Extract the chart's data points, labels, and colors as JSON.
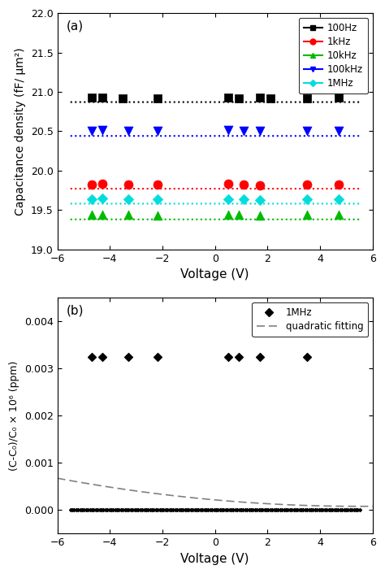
{
  "panel_a": {
    "xlabel": "Voltage (V)",
    "ylabel": "Capacitance density (fF/ μm²)",
    "label": "(a)",
    "xlim": [
      -6,
      6
    ],
    "ylim": [
      19.0,
      22.0
    ],
    "yticks": [
      19.0,
      19.5,
      20.0,
      20.5,
      21.0,
      21.5,
      22.0
    ],
    "xticks": [
      -6,
      -4,
      -2,
      0,
      2,
      4,
      6
    ],
    "series": [
      {
        "label": "100Hz",
        "color": "#000000",
        "marker": "s",
        "marker_size": 5,
        "y_line": 20.87,
        "scatter_x": [
          -4.7,
          -4.3,
          -3.5,
          -2.2,
          0.5,
          0.9,
          1.7,
          2.1,
          3.5,
          4.7
        ],
        "scatter_y": [
          20.93,
          20.93,
          20.92,
          20.92,
          20.93,
          20.92,
          20.93,
          20.92,
          20.92,
          20.93
        ]
      },
      {
        "label": "1kHz",
        "color": "#ff0000",
        "marker": "o",
        "marker_size": 5,
        "y_line": 19.77,
        "scatter_x": [
          -4.7,
          -4.3,
          -3.3,
          -2.2,
          0.5,
          1.1,
          1.7,
          3.5,
          4.7
        ],
        "scatter_y": [
          19.82,
          19.83,
          19.82,
          19.82,
          19.83,
          19.82,
          19.81,
          19.82,
          19.82
        ]
      },
      {
        "label": "10kHz",
        "color": "#00bb00",
        "marker": "^",
        "marker_size": 5,
        "y_line": 19.38,
        "scatter_x": [
          -4.7,
          -4.3,
          -3.3,
          -2.2,
          0.5,
          0.9,
          1.7,
          3.5,
          4.7
        ],
        "scatter_y": [
          19.44,
          19.44,
          19.44,
          19.43,
          19.44,
          19.44,
          19.43,
          19.44,
          19.44
        ]
      },
      {
        "label": "100kHz",
        "color": "#0000ff",
        "marker": "v",
        "marker_size": 5,
        "y_line": 20.44,
        "scatter_x": [
          -4.7,
          -4.3,
          -3.3,
          -2.2,
          0.5,
          1.1,
          1.7,
          3.5,
          4.7
        ],
        "scatter_y": [
          20.5,
          20.51,
          20.5,
          20.5,
          20.51,
          20.5,
          20.5,
          20.5,
          20.5
        ]
      },
      {
        "label": "1MHz",
        "color": "#00dddd",
        "marker": "D",
        "marker_size": 4,
        "y_line": 19.58,
        "scatter_x": [
          -4.7,
          -4.3,
          -3.3,
          -2.2,
          0.5,
          1.1,
          1.7,
          3.5,
          4.7
        ],
        "scatter_y": [
          19.64,
          19.65,
          19.64,
          19.64,
          19.64,
          19.64,
          19.63,
          19.64,
          19.64
        ]
      }
    ]
  },
  "panel_b": {
    "xlabel": "Voltage (V)",
    "ylabel": "(C-C₀)/C₀ × 10⁶ (ppm)",
    "label": "(b)",
    "xlim": [
      -6,
      6
    ],
    "ylim": [
      -0.0005,
      0.0045
    ],
    "yticks": [
      0.0,
      0.001,
      0.002,
      0.003,
      0.004
    ],
    "ytick_labels": [
      "0.000",
      "0.001",
      "0.002",
      "0.003",
      "0.004"
    ],
    "xticks": [
      -6,
      -4,
      -2,
      0,
      2,
      4,
      6
    ],
    "scatter_big_x": [
      -4.7,
      -4.3,
      -3.3,
      -2.2,
      0.5,
      0.9,
      1.7,
      3.5
    ],
    "scatter_big_y": [
      0.00325,
      0.00325,
      0.00325,
      0.00325,
      0.00325,
      0.00325,
      0.00325,
      0.00325
    ],
    "quad_x_start": -6,
    "quad_x_end": 6,
    "quad_y_start": 0.00045,
    "quad_y_end": 8e-05,
    "dense_scatter_y": 0.0,
    "legend_1MHz": "1MHz",
    "legend_fit": "quadratic fitting"
  }
}
